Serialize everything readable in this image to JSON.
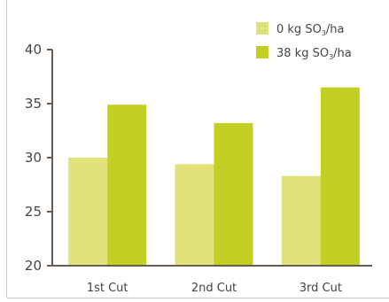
{
  "chart_data": {
    "type": "bar",
    "categories": [
      "1st Cut",
      "2nd Cut",
      "3rd Cut"
    ],
    "series": [
      {
        "name": "0 kg SO₃/ha",
        "values": [
          30,
          29.4,
          28.3
        ],
        "color": "#e1e27a"
      },
      {
        "name": "38 kg SO₃/ha",
        "values": [
          34.9,
          33.2,
          36.5
        ],
        "color": "#c4cf25"
      }
    ],
    "ylim": [
      20,
      40
    ],
    "yticks": [
      20,
      25,
      30,
      35,
      40
    ],
    "grid": false,
    "legend": "top-right",
    "axis_color": "#6b5a4e",
    "frame_color": "#c9c9c9"
  }
}
